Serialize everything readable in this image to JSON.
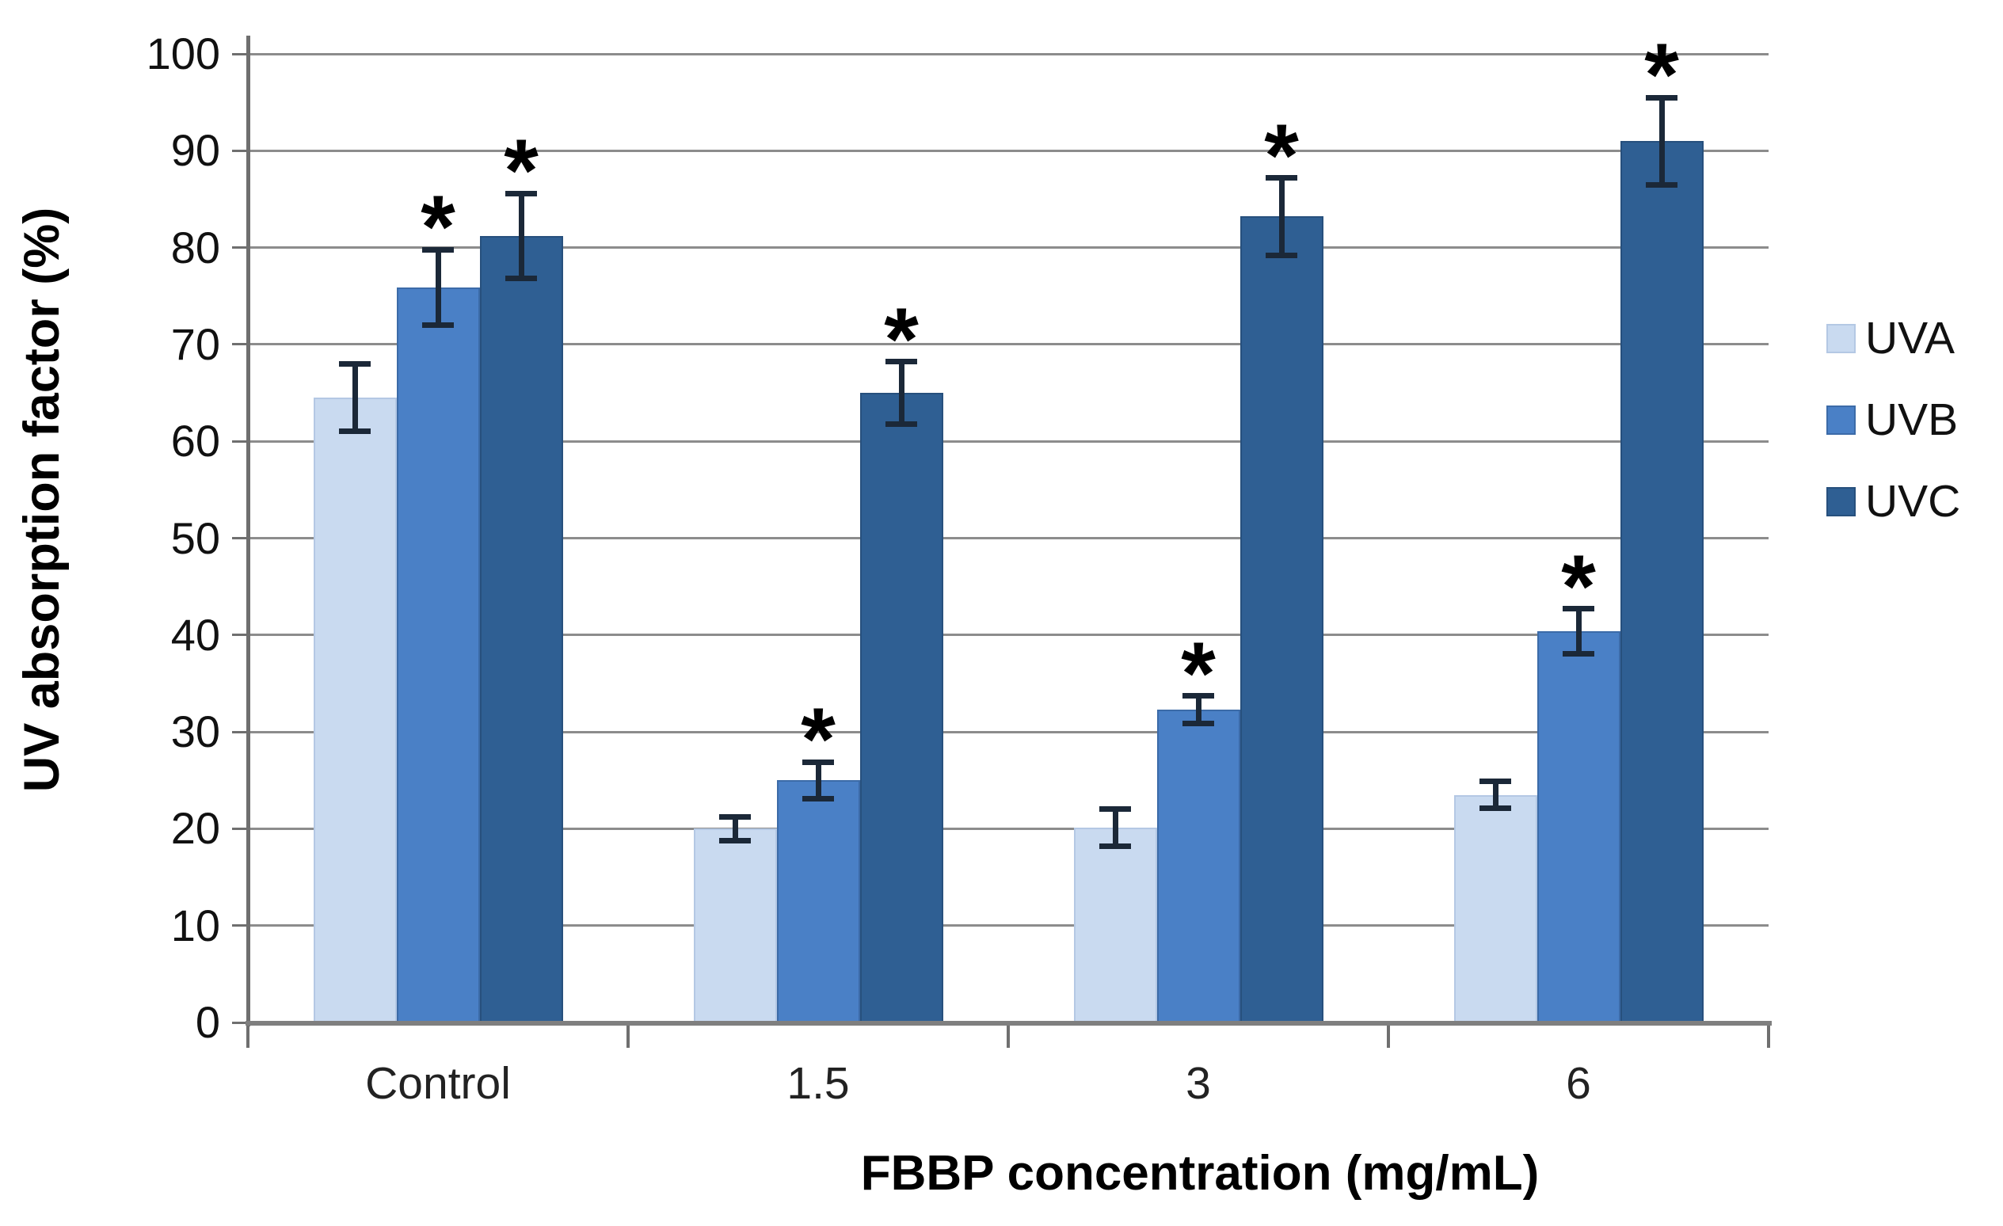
{
  "figure": {
    "background": "#ffffff"
  },
  "chart_data": {
    "type": "bar",
    "title": "",
    "xlabel": "FBBP concentration (mg/mL)",
    "ylabel": "UV absorption factor (%)",
    "categories": [
      "Control",
      "1.5",
      "3",
      "6"
    ],
    "series": [
      {
        "name": "UVA",
        "color": "#c9daf0",
        "border_color": "#b4c8e4",
        "values": [
          64.5,
          20.0,
          20.1,
          23.5
        ],
        "errors": [
          3.5,
          1.2,
          1.9,
          1.4
        ],
        "significant": [
          false,
          false,
          false,
          false
        ]
      },
      {
        "name": "UVB",
        "color": "#4a80c6",
        "border_color": "#3c6ba8",
        "values": [
          75.9,
          25.0,
          32.3,
          40.4
        ],
        "errors": [
          3.9,
          1.9,
          1.4,
          2.3
        ],
        "significant": [
          true,
          true,
          true,
          true
        ]
      },
      {
        "name": "UVC",
        "color": "#2f5f93",
        "border_color": "#27507d",
        "values": [
          81.2,
          65.0,
          83.2,
          91.0
        ],
        "errors": [
          4.4,
          3.2,
          4.0,
          4.5
        ],
        "significant": [
          true,
          true,
          true,
          true
        ]
      }
    ],
    "ylim": [
      0,
      100
    ],
    "ytick_step": 10,
    "ytick_labels": [
      "0",
      "10",
      "20",
      "30",
      "40",
      "50",
      "60",
      "70",
      "80",
      "90",
      "100"
    ],
    "grid": "horizontal",
    "legend_position": "right",
    "legend_entries": [
      "UVA",
      "UVB",
      "UVC"
    ],
    "significance_marker": "*",
    "error_bar_color": "#1b2838",
    "gridline_color": "#8c8c8c",
    "axis_color": "#6f6f6f"
  }
}
